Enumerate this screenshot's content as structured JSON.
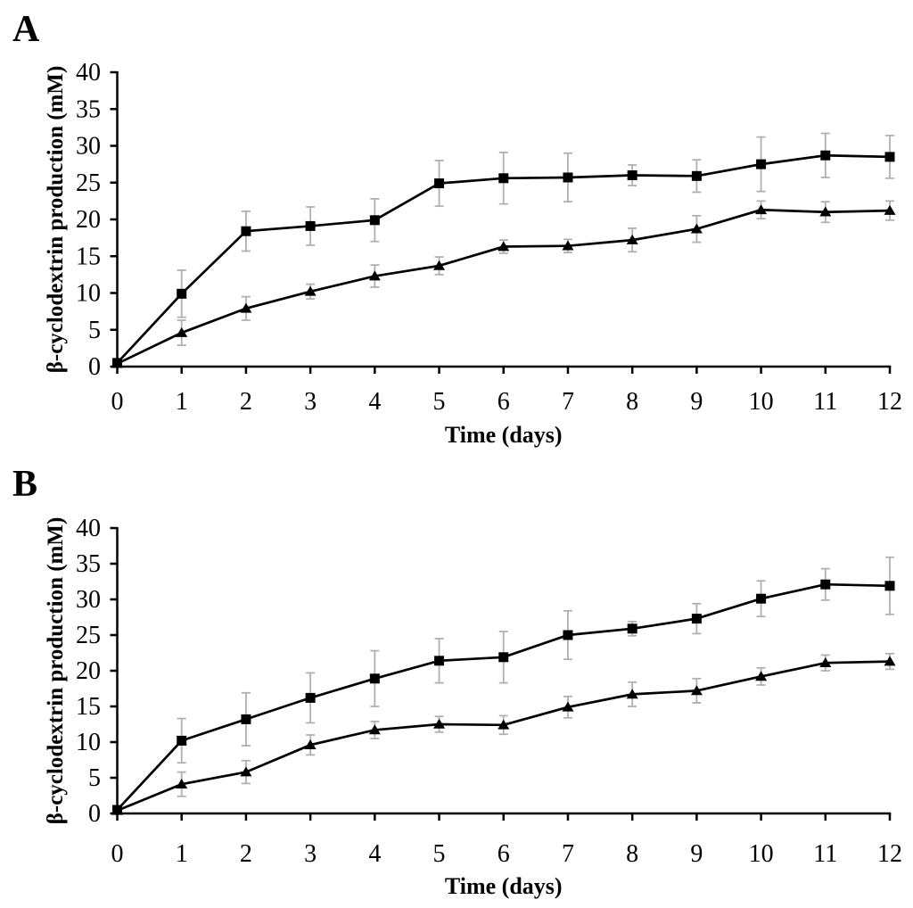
{
  "figure": {
    "background": "#ffffff",
    "x_title": "Time (days)",
    "y_title": "β-cyclodextrin production (mM)"
  },
  "colors": {
    "series_line": "#000000",
    "marker_fill": "#000000",
    "error_bar": "#b0b0b0",
    "axis": "#000000",
    "text": "#000000"
  },
  "chart_data": [
    {
      "id": "A",
      "panel_label": "A",
      "type": "line",
      "title": "",
      "xlabel": "Time (days)",
      "ylabel": "β-cyclodextrin production (mM)",
      "xlim": [
        0,
        12
      ],
      "ylim": [
        0,
        40
      ],
      "xticks": [
        0,
        1,
        2,
        3,
        4,
        5,
        6,
        7,
        8,
        9,
        10,
        11,
        12
      ],
      "yticks": [
        0,
        5,
        10,
        15,
        20,
        25,
        30,
        35,
        40
      ],
      "grid": false,
      "legend": "none",
      "x": [
        0,
        1,
        2,
        3,
        4,
        5,
        6,
        7,
        8,
        9,
        10,
        11,
        12
      ],
      "series": [
        {
          "name": "squares",
          "marker": "square",
          "values": [
            0.5,
            9.9,
            18.4,
            19.1,
            19.9,
            24.9,
            25.6,
            25.7,
            26.0,
            25.9,
            27.5,
            28.7,
            28.5
          ],
          "errors": [
            0,
            3.2,
            2.7,
            2.6,
            2.9,
            3.1,
            3.5,
            3.3,
            1.4,
            2.2,
            3.7,
            3.0,
            2.9
          ]
        },
        {
          "name": "triangles",
          "marker": "triangle",
          "values": [
            0.4,
            4.6,
            7.9,
            10.2,
            12.3,
            13.7,
            16.3,
            16.4,
            17.2,
            18.7,
            21.3,
            21.0,
            21.2
          ],
          "errors": [
            0,
            1.7,
            1.6,
            1.0,
            1.5,
            1.2,
            0.9,
            0.9,
            1.6,
            1.8,
            1.2,
            1.4,
            1.3
          ]
        }
      ]
    },
    {
      "id": "B",
      "panel_label": "B",
      "type": "line",
      "title": "",
      "xlabel": "Time (days)",
      "ylabel": "β-cyclodextrin production (mM)",
      "xlim": [
        0,
        12
      ],
      "ylim": [
        0,
        40
      ],
      "xticks": [
        0,
        1,
        2,
        3,
        4,
        5,
        6,
        7,
        8,
        9,
        10,
        11,
        12
      ],
      "yticks": [
        0,
        5,
        10,
        15,
        20,
        25,
        30,
        35,
        40
      ],
      "grid": false,
      "legend": "none",
      "x": [
        0,
        1,
        2,
        3,
        4,
        5,
        6,
        7,
        8,
        9,
        10,
        11,
        12
      ],
      "series": [
        {
          "name": "squares",
          "marker": "square",
          "values": [
            0.5,
            10.2,
            13.2,
            16.2,
            18.9,
            21.4,
            21.9,
            25.0,
            25.9,
            27.3,
            30.1,
            32.1,
            31.9
          ],
          "errors": [
            0,
            3.1,
            3.7,
            3.5,
            3.9,
            3.1,
            3.6,
            3.4,
            1.0,
            2.1,
            2.5,
            2.2,
            4.0
          ]
        },
        {
          "name": "triangles",
          "marker": "triangle",
          "values": [
            0.4,
            4.1,
            5.8,
            9.6,
            11.7,
            12.5,
            12.4,
            14.9,
            16.7,
            17.2,
            19.2,
            21.1,
            21.3
          ],
          "errors": [
            0,
            1.7,
            1.6,
            1.4,
            1.2,
            1.1,
            1.3,
            1.5,
            1.7,
            1.7,
            1.2,
            1.1,
            1.1
          ]
        }
      ]
    }
  ]
}
